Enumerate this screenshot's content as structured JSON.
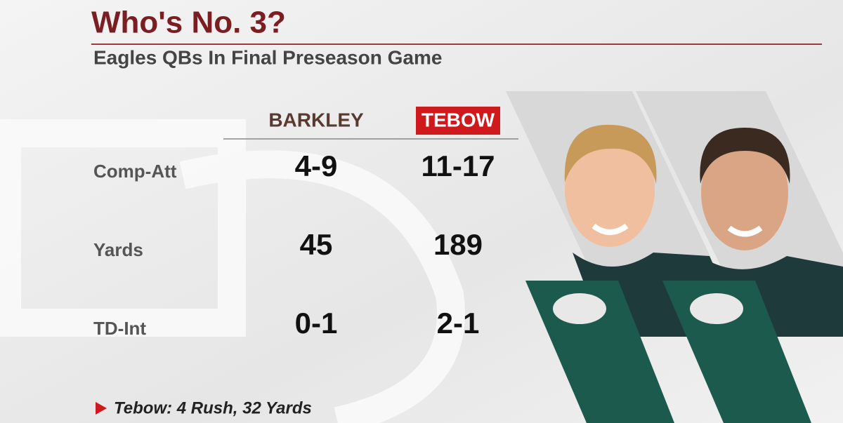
{
  "header": {
    "title": "Who's No. 3?",
    "subtitle": "Eagles QBs In Final Preseason Game"
  },
  "table": {
    "columns": [
      "BARKLEY",
      "TEBOW"
    ],
    "rows": [
      {
        "label": "Comp-Att",
        "values": [
          "4-9",
          "11-17"
        ]
      },
      {
        "label": "Yards",
        "values": [
          45,
          189
        ]
      },
      {
        "label": "TD-Int",
        "values": [
          "0-1",
          "2-1"
        ]
      }
    ]
  },
  "footnote": "Tebow: 4 Rush, 32 Yards"
}
